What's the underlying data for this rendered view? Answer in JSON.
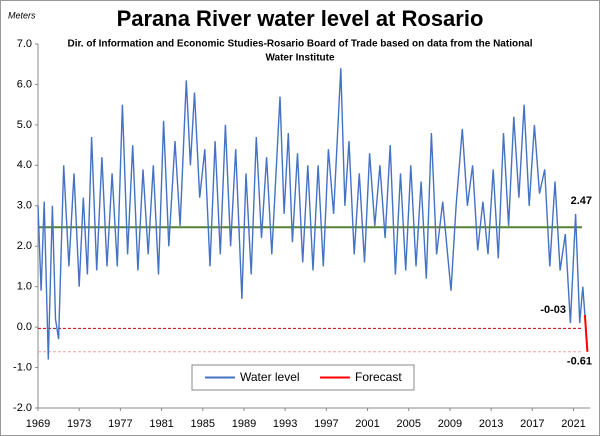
{
  "chart_data": {
    "type": "line",
    "title": "Parana River water level at Rosario",
    "subtitle": [
      "Dir. of Information and Economic Studies-Rosario Board of Trade based on data from the National",
      "Water Institute"
    ],
    "y_axis_label": "Meters",
    "xlim": [
      1969,
      2022.6
    ],
    "xticks": [
      1969,
      1973,
      1977,
      1981,
      1985,
      1989,
      1993,
      1997,
      2001,
      2005,
      2009,
      2013,
      2017,
      2021
    ],
    "ylim": [
      -2,
      7
    ],
    "yticks": [
      {
        "value": 7,
        "label": "7.0"
      },
      {
        "value": 6,
        "label": "6.0"
      },
      {
        "value": 5,
        "label": "5.0"
      },
      {
        "value": 4,
        "label": "4.0"
      },
      {
        "value": 3,
        "label": "3.0"
      },
      {
        "value": 2,
        "label": "2.0"
      },
      {
        "value": 1,
        "label": "1.0"
      },
      {
        "value": 0,
        "label": "0.0"
      },
      {
        "value": -1,
        "label": "-1.0"
      },
      {
        "value": -2,
        "label": "-2.0"
      }
    ],
    "legend": "bottom",
    "series": [
      {
        "name": "Water level",
        "color": "#4472c4",
        "x": [
          1969,
          1969.3,
          1969.6,
          1970,
          1970.4,
          1970.7,
          1971,
          1971.5,
          1972,
          1972.5,
          1973,
          1973.4,
          1973.8,
          1974.2,
          1974.7,
          1975.2,
          1975.7,
          1976.2,
          1976.7,
          1977.2,
          1977.7,
          1978.2,
          1978.7,
          1979.2,
          1979.7,
          1980.2,
          1980.7,
          1981.2,
          1981.7,
          1982.3,
          1982.8,
          1983.4,
          1983.8,
          1984.2,
          1984.7,
          1985.2,
          1985.7,
          1986.2,
          1986.7,
          1987.2,
          1987.7,
          1988.2,
          1988.8,
          1989.2,
          1989.7,
          1990.2,
          1990.7,
          1991.2,
          1991.7,
          1992.5,
          1992.9,
          1993.3,
          1993.7,
          1994.2,
          1994.7,
          1995.2,
          1995.7,
          1996.2,
          1996.7,
          1997.2,
          1997.7,
          1998.4,
          1998.8,
          1999.2,
          1999.7,
          2000.2,
          2000.7,
          2001.2,
          2001.7,
          2002.2,
          2002.7,
          2003.2,
          2003.7,
          2004.2,
          2004.7,
          2005.2,
          2005.7,
          2006.2,
          2006.7,
          2007.2,
          2007.7,
          2008.3,
          2009.1,
          2009.6,
          2010.2,
          2010.7,
          2011.2,
          2011.7,
          2012.2,
          2012.7,
          2013.2,
          2013.7,
          2014.2,
          2014.7,
          2015.2,
          2015.7,
          2016.2,
          2016.7,
          2017.2,
          2017.7,
          2018.2,
          2018.7,
          2019.2,
          2019.7,
          2020.2,
          2020.7,
          2021.2,
          2021.6,
          2021.9,
          2022.1
        ],
        "values": [
          3.0,
          0.9,
          3.1,
          -0.8,
          3.0,
          0.2,
          -0.3,
          4.0,
          1.5,
          3.8,
          1.0,
          3.2,
          1.3,
          4.7,
          1.4,
          4.2,
          1.5,
          3.8,
          1.5,
          5.5,
          1.8,
          4.5,
          1.4,
          3.9,
          1.8,
          4.0,
          1.3,
          5.1,
          2.0,
          4.6,
          2.5,
          6.1,
          4.0,
          5.8,
          3.2,
          4.4,
          1.5,
          4.6,
          1.8,
          5.0,
          2.0,
          4.4,
          0.7,
          3.8,
          1.3,
          4.7,
          2.2,
          4.2,
          1.8,
          5.7,
          2.8,
          4.8,
          2.1,
          4.3,
          1.6,
          4.0,
          1.4,
          4.0,
          1.5,
          4.4,
          2.8,
          6.4,
          3.0,
          4.6,
          1.8,
          3.8,
          1.6,
          4.3,
          2.5,
          4.0,
          2.2,
          4.5,
          1.3,
          3.8,
          1.4,
          4.0,
          1.5,
          3.6,
          1.2,
          4.8,
          1.8,
          3.1,
          0.9,
          3.0,
          4.9,
          3.0,
          4.0,
          1.9,
          3.1,
          1.8,
          3.9,
          1.7,
          4.8,
          2.5,
          5.2,
          3.2,
          5.5,
          3.0,
          5.0,
          3.3,
          3.9,
          1.5,
          3.6,
          1.4,
          2.3,
          0.1,
          2.8,
          0.1,
          1.0,
          0.3
        ]
      },
      {
        "name": "Forecast",
        "color": "#ff0000",
        "x": [
          2022.1,
          2022.35
        ],
        "values": [
          0.3,
          -0.61
        ]
      }
    ],
    "reference_lines": [
      {
        "value": 2.47,
        "label": "2.47",
        "color": "#548235",
        "style": "solid"
      },
      {
        "value": -0.03,
        "label": "-0-03",
        "color": "#c00000",
        "style": "dashed"
      },
      {
        "value": -0.61,
        "label": "-0.61",
        "color": "#f4a0a0",
        "style": "dashed"
      }
    ]
  }
}
